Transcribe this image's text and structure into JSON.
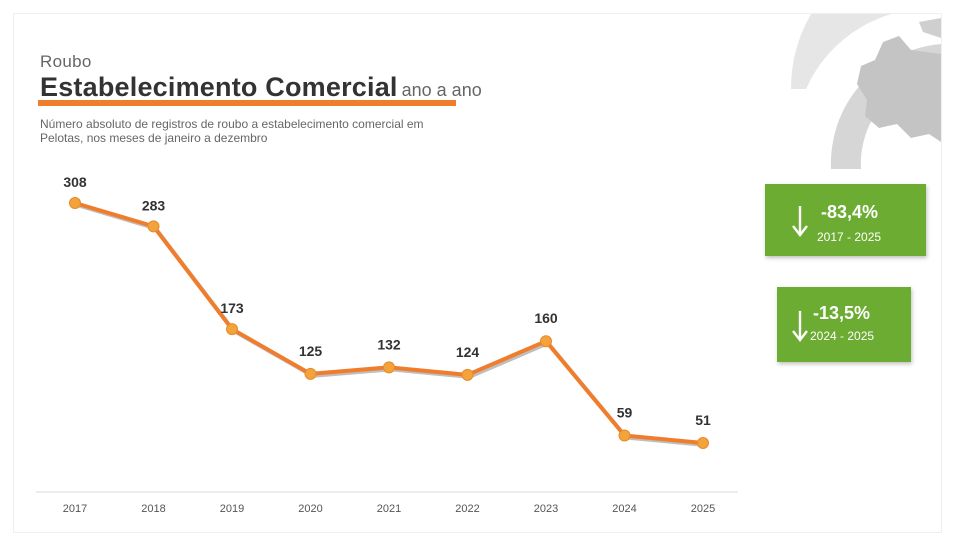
{
  "header": {
    "kicker": "Roubo",
    "title": "Estabelecimento Comercial",
    "title_suffix": "ano a ano",
    "subtitle": "Número absoluto de registros de roubo a estabelecimento comercial em Pelotas, nos meses de janeiro a dezembro"
  },
  "badges": [
    {
      "value": "-83,4%",
      "range": "2017 - 2025"
    },
    {
      "value": "-13,5%",
      "range": "2024 - 2025"
    }
  ],
  "colors": {
    "line": "#f07d2c",
    "marker": "#f2a33a",
    "badge": "#6cac32",
    "underline": "#f07d2c"
  },
  "chart_data": {
    "type": "line",
    "categories": [
      "2017",
      "2018",
      "2019",
      "2020",
      "2021",
      "2022",
      "2023",
      "2024",
      "2025"
    ],
    "values": [
      308,
      283,
      173,
      125,
      132,
      124,
      160,
      59,
      51
    ],
    "data_labels": [
      "308",
      "283",
      "173",
      "125",
      "132",
      "124",
      "160",
      "59",
      "51"
    ],
    "title": "Estabelecimento Comercial",
    "xlabel": "",
    "ylabel": "",
    "grid": false,
    "legend": "none"
  }
}
